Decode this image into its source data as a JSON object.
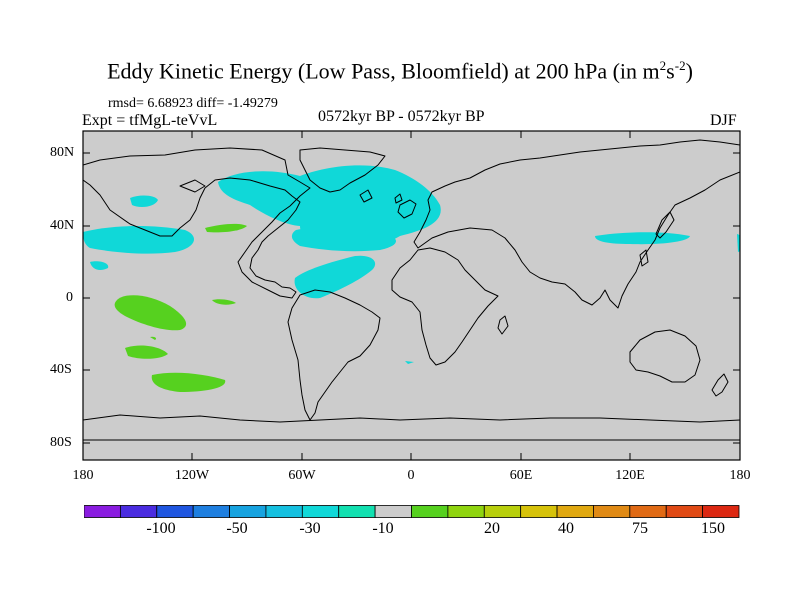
{
  "title": {
    "text": "Eddy Kinetic Energy (Low Pass, Bloomfield) at 200 hPa (in m",
    "sup1": "2",
    "mid": "s",
    "sup2": "-2",
    "close": ")"
  },
  "stats": "rmsd= 6.68923 diff= -1.49279",
  "experiment": "Expt = tfMgL-teVvL",
  "period": "0572kyr BP - 0572kyr BP",
  "season": "DJF",
  "axes": {
    "y_ticks": [
      "80N",
      "40N",
      "0",
      "40S",
      "80S"
    ],
    "x_ticks": [
      "180",
      "120W",
      "60W",
      "0",
      "60E",
      "120E",
      "180"
    ]
  },
  "colorbar": {
    "colors": [
      "#8a1ce0",
      "#4a2ce0",
      "#1f56e0",
      "#1e7fe0",
      "#17a3e0",
      "#15c0e0",
      "#10d8d8",
      "#12e0b0",
      "#cccccc",
      "#56d11f",
      "#8fd40f",
      "#b8cf0c",
      "#d6c20a",
      "#e0a810",
      "#e08a15",
      "#e06a15",
      "#e04a15",
      "#dc2812"
    ],
    "labels": [
      "-100",
      "-50",
      "-30",
      "-10",
      "20",
      "40",
      "75",
      "150"
    ]
  },
  "map_colors": {
    "ocean_land": "#cccccc",
    "cyan": "#10d8d8",
    "green": "#56d11f"
  }
}
